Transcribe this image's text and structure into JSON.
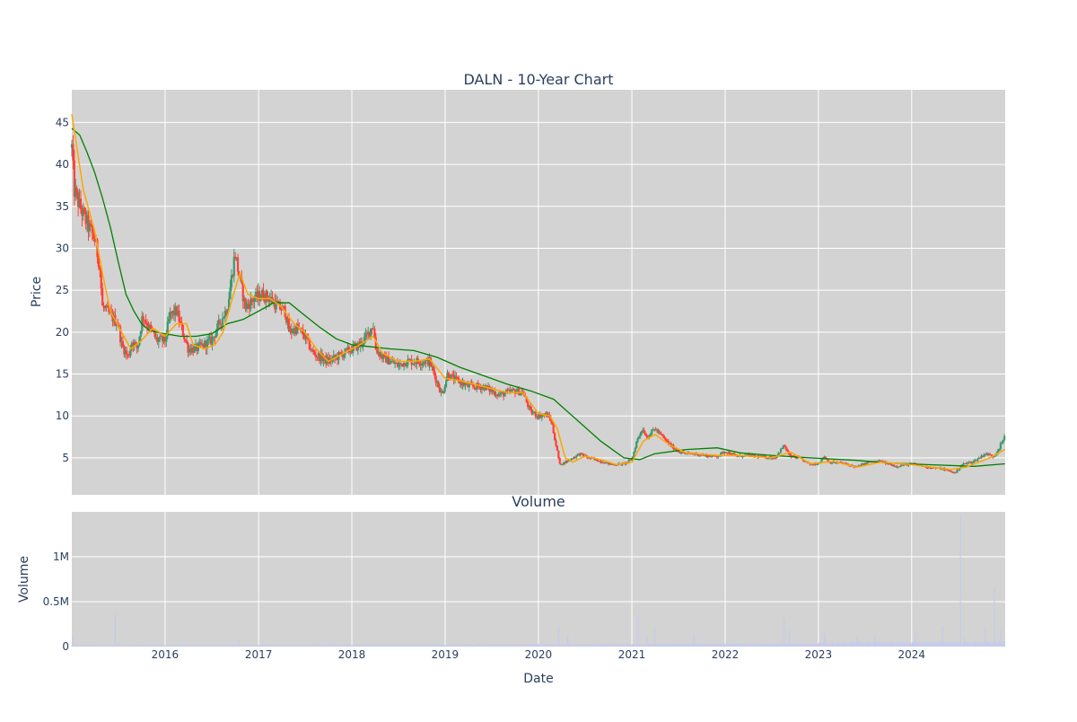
{
  "chart_data": [
    {
      "type": "candlestick",
      "title": "DALN - 10-Year Chart",
      "ylabel": "Price",
      "xlabel": "",
      "xlim": [
        "2015-01-01",
        "2025-01-01"
      ],
      "ylim": [
        0.6,
        48.9
      ],
      "y_ticks": [
        5,
        10,
        15,
        20,
        25,
        30,
        35,
        40,
        45
      ],
      "x_ticks": [
        "2016",
        "2017",
        "2018",
        "2019",
        "2020",
        "2021",
        "2022",
        "2023",
        "2024"
      ],
      "grid": true,
      "colors": {
        "increasing": "#3d9970",
        "decreasing": "#ff4136",
        "short_ma": "#ffa500",
        "long_ma": "#008000",
        "plot_bg": "#d3d3d3"
      },
      "price_path": [
        [
          "2015-01-01",
          42
        ],
        [
          "2015-01-10",
          37
        ],
        [
          "2015-02-01",
          35
        ],
        [
          "2015-03-01",
          33
        ],
        [
          "2015-04-01",
          31
        ],
        [
          "2015-04-20",
          28
        ],
        [
          "2015-05-01",
          23
        ],
        [
          "2015-06-01",
          22
        ],
        [
          "2015-07-01",
          21
        ],
        [
          "2015-07-15",
          18.5
        ],
        [
          "2015-08-10",
          17
        ],
        [
          "2015-08-25",
          19
        ],
        [
          "2015-09-15",
          18
        ],
        [
          "2015-10-05",
          22
        ],
        [
          "2015-11-01",
          20.5
        ],
        [
          "2015-12-01",
          19
        ],
        [
          "2016-01-01",
          19
        ],
        [
          "2016-01-20",
          22
        ],
        [
          "2016-02-15",
          22.5
        ],
        [
          "2016-03-10",
          20
        ],
        [
          "2016-04-01",
          18
        ],
        [
          "2016-05-01",
          18
        ],
        [
          "2016-06-01",
          18.5
        ],
        [
          "2016-07-01",
          19
        ],
        [
          "2016-08-01",
          21
        ],
        [
          "2016-09-01",
          23
        ],
        [
          "2016-09-15",
          26
        ],
        [
          "2016-10-01",
          29.5
        ],
        [
          "2016-10-15",
          27
        ],
        [
          "2016-11-10",
          23
        ],
        [
          "2016-12-15",
          24
        ],
        [
          "2017-01-15",
          24.5
        ],
        [
          "2017-02-15",
          24
        ],
        [
          "2017-03-20",
          23
        ],
        [
          "2017-04-15",
          22.5
        ],
        [
          "2017-05-01",
          20
        ],
        [
          "2017-06-01",
          20.5
        ],
        [
          "2017-07-01",
          19.5
        ],
        [
          "2017-08-01",
          17.5
        ],
        [
          "2017-09-01",
          17
        ],
        [
          "2017-10-01",
          16.5
        ],
        [
          "2017-11-01",
          17
        ],
        [
          "2017-12-01",
          17.5
        ],
        [
          "2018-01-01",
          18
        ],
        [
          "2018-02-01",
          18.5
        ],
        [
          "2018-03-01",
          19.5
        ],
        [
          "2018-03-25",
          21
        ],
        [
          "2018-04-05",
          18
        ],
        [
          "2018-05-01",
          17
        ],
        [
          "2018-06-01",
          16.5
        ],
        [
          "2018-07-01",
          16
        ],
        [
          "2018-08-01",
          16.5
        ],
        [
          "2018-09-01",
          16.5
        ],
        [
          "2018-10-01",
          16.5
        ],
        [
          "2018-11-01",
          16.5
        ],
        [
          "2018-12-01",
          14
        ],
        [
          "2018-12-20",
          12.5
        ],
        [
          "2019-01-10",
          15
        ],
        [
          "2019-02-01",
          14.5
        ],
        [
          "2019-04-01",
          13.5
        ],
        [
          "2019-06-01",
          13.5
        ],
        [
          "2019-08-01",
          12.5
        ],
        [
          "2019-10-01",
          13
        ],
        [
          "2019-11-01",
          12.8
        ],
        [
          "2019-12-01",
          10.5
        ],
        [
          "2020-01-01",
          10
        ],
        [
          "2020-02-01",
          10.2
        ],
        [
          "2020-02-20",
          9.5
        ],
        [
          "2020-03-10",
          6.5
        ],
        [
          "2020-03-25",
          4.2
        ],
        [
          "2020-04-15",
          4.5
        ],
        [
          "2020-05-15",
          5
        ],
        [
          "2020-06-10",
          5.5
        ],
        [
          "2020-07-15",
          5
        ],
        [
          "2020-09-01",
          4.6
        ],
        [
          "2020-10-15",
          4.2
        ],
        [
          "2020-12-01",
          4.3
        ],
        [
          "2021-01-01",
          4.8
        ],
        [
          "2021-01-20",
          7
        ],
        [
          "2021-02-10",
          8.5
        ],
        [
          "2021-03-01",
          7.5
        ],
        [
          "2021-04-01",
          8.5
        ],
        [
          "2021-05-01",
          7.5
        ],
        [
          "2021-06-01",
          6.5
        ],
        [
          "2021-07-01",
          5.8
        ],
        [
          "2021-08-01",
          5.5
        ],
        [
          "2021-09-01",
          5.5
        ],
        [
          "2021-11-01",
          5.2
        ],
        [
          "2021-12-01",
          5.2
        ],
        [
          "2022-01-01",
          5.8
        ],
        [
          "2022-02-15",
          5.2
        ],
        [
          "2022-04-01",
          5.3
        ],
        [
          "2022-06-01",
          5.1
        ],
        [
          "2022-07-15",
          5
        ],
        [
          "2022-08-20",
          6.5
        ],
        [
          "2022-09-10",
          5.2
        ],
        [
          "2022-10-15",
          5
        ],
        [
          "2022-12-01",
          4.2
        ],
        [
          "2023-01-01",
          4.4
        ],
        [
          "2023-01-25",
          5.2
        ],
        [
          "2023-02-10",
          4.5
        ],
        [
          "2023-04-01",
          4.4
        ],
        [
          "2023-06-01",
          3.9
        ],
        [
          "2023-07-15",
          4.5
        ],
        [
          "2023-09-01",
          4.6
        ],
        [
          "2023-11-01",
          4
        ],
        [
          "2024-01-01",
          4.3
        ],
        [
          "2024-03-01",
          3.9
        ],
        [
          "2024-05-01",
          3.7
        ],
        [
          "2024-06-20",
          3.2
        ],
        [
          "2024-07-15",
          4.2
        ],
        [
          "2024-09-01",
          4.6
        ],
        [
          "2024-10-15",
          5.5
        ],
        [
          "2024-11-15",
          5.2
        ],
        [
          "2024-12-01",
          5.8
        ],
        [
          "2024-12-31",
          7.5
        ]
      ],
      "series": [
        {
          "values": [
            [
              "2015-01-01",
              46
            ],
            [
              "2015-02-15",
              37
            ],
            [
              "2015-04-01",
              32
            ],
            [
              "2015-05-01",
              27
            ],
            [
              "2015-06-01",
              22.5
            ],
            [
              "2015-07-15",
              20
            ],
            [
              "2015-08-20",
              18
            ],
            [
              "2015-10-01",
              19
            ],
            [
              "2015-11-15",
              20.5
            ],
            [
              "2016-01-01",
              19.5
            ],
            [
              "2016-02-15",
              21
            ],
            [
              "2016-03-25",
              21
            ],
            [
              "2016-04-20",
              18.5
            ],
            [
              "2016-06-01",
              18
            ],
            [
              "2016-07-15",
              18.5
            ],
            [
              "2016-08-15",
              20
            ],
            [
              "2016-09-20",
              24
            ],
            [
              "2016-10-20",
              27
            ],
            [
              "2016-11-20",
              24.5
            ],
            [
              "2017-01-01",
              24
            ],
            [
              "2017-02-15",
              24
            ],
            [
              "2017-04-01",
              23
            ],
            [
              "2017-05-20",
              21
            ],
            [
              "2017-07-01",
              20
            ],
            [
              "2017-08-15",
              18
            ],
            [
              "2017-10-01",
              16.5
            ],
            [
              "2017-12-01",
              17.5
            ],
            [
              "2018-02-01",
              18.5
            ],
            [
              "2018-03-25",
              19.5
            ],
            [
              "2018-05-01",
              17.5
            ],
            [
              "2018-07-01",
              16.5
            ],
            [
              "2018-09-01",
              16.5
            ],
            [
              "2018-11-01",
              16.8
            ],
            [
              "2019-01-01",
              14.5
            ],
            [
              "2019-03-01",
              14.2
            ],
            [
              "2019-06-01",
              13.5
            ],
            [
              "2019-09-01",
              12.8
            ],
            [
              "2019-11-01",
              12.8
            ],
            [
              "2020-01-01",
              10.3
            ],
            [
              "2020-02-15",
              10
            ],
            [
              "2020-03-15",
              8.5
            ],
            [
              "2020-04-15",
              5
            ],
            [
              "2020-05-15",
              4.5
            ],
            [
              "2020-07-01",
              5.2
            ],
            [
              "2020-09-01",
              4.8
            ],
            [
              "2020-11-01",
              4.2
            ],
            [
              "2021-01-01",
              4.5
            ],
            [
              "2021-02-15",
              7
            ],
            [
              "2021-04-01",
              7.8
            ],
            [
              "2021-06-01",
              6.5
            ],
            [
              "2021-08-01",
              5.6
            ],
            [
              "2021-12-01",
              5.3
            ],
            [
              "2022-03-01",
              5.3
            ],
            [
              "2022-07-01",
              5
            ],
            [
              "2022-09-15",
              5.7
            ],
            [
              "2022-12-01",
              4.3
            ],
            [
              "2023-03-01",
              4.6
            ],
            [
              "2023-06-01",
              3.9
            ],
            [
              "2023-09-01",
              4.5
            ],
            [
              "2024-01-01",
              4.2
            ],
            [
              "2024-06-01",
              3.6
            ],
            [
              "2024-08-01",
              3.9
            ],
            [
              "2024-11-01",
              5
            ],
            [
              "2024-12-31",
              6
            ]
          ]
        },
        {
          "values": [
            [
              "2015-01-01",
              44.3
            ],
            [
              "2015-02-01",
              43.5
            ],
            [
              "2015-03-01",
              41.5
            ],
            [
              "2015-04-01",
              39
            ],
            [
              "2015-05-01",
              36
            ],
            [
              "2015-06-01",
              32.5
            ],
            [
              "2015-07-01",
              28.5
            ],
            [
              "2015-08-01",
              24.5
            ],
            [
              "2015-09-01",
              22.5
            ],
            [
              "2015-10-01",
              21
            ],
            [
              "2015-11-01",
              20.2
            ],
            [
              "2015-12-01",
              20
            ],
            [
              "2016-01-01",
              19.8
            ],
            [
              "2016-03-01",
              19.5
            ],
            [
              "2016-05-01",
              19.5
            ],
            [
              "2016-07-01",
              19.8
            ],
            [
              "2016-09-01",
              21
            ],
            [
              "2016-11-01",
              21.5
            ],
            [
              "2017-01-01",
              22.5
            ],
            [
              "2017-03-01",
              23.5
            ],
            [
              "2017-05-01",
              23.5
            ],
            [
              "2017-07-01",
              22
            ],
            [
              "2017-09-01",
              20.5
            ],
            [
              "2017-11-01",
              19.2
            ],
            [
              "2018-01-01",
              18.5
            ],
            [
              "2018-03-01",
              18.3
            ],
            [
              "2018-06-01",
              18
            ],
            [
              "2018-09-01",
              17.8
            ],
            [
              "2018-12-01",
              17
            ],
            [
              "2019-03-01",
              15.8
            ],
            [
              "2019-06-01",
              14.8
            ],
            [
              "2019-09-01",
              13.8
            ],
            [
              "2019-12-01",
              13
            ],
            [
              "2020-03-01",
              12
            ],
            [
              "2020-06-01",
              9.5
            ],
            [
              "2020-09-01",
              7
            ],
            [
              "2020-12-01",
              5
            ],
            [
              "2021-02-01",
              4.8
            ],
            [
              "2021-04-01",
              5.5
            ],
            [
              "2021-08-01",
              6
            ],
            [
              "2021-12-01",
              6.2
            ],
            [
              "2022-03-01",
              5.6
            ],
            [
              "2022-07-01",
              5.3
            ],
            [
              "2022-12-01",
              5
            ],
            [
              "2023-06-01",
              4.7
            ],
            [
              "2023-10-01",
              4.4
            ],
            [
              "2024-03-01",
              4.2
            ],
            [
              "2024-09-01",
              4
            ],
            [
              "2024-12-31",
              4.3
            ]
          ]
        }
      ]
    },
    {
      "type": "bar",
      "title": "Volume",
      "xlabel": "Date",
      "ylabel": "Volume",
      "ylim": [
        0,
        1500000
      ],
      "y_ticks": [
        0,
        500000,
        1000000
      ],
      "y_tick_labels": [
        "0",
        "0.5M",
        "1M"
      ],
      "x_ticks": [
        "2016",
        "2017",
        "2018",
        "2019",
        "2020",
        "2021",
        "2022",
        "2023",
        "2024"
      ],
      "grid": true,
      "bar_color": "#c5cbea",
      "spikes": [
        [
          "2015-01-05",
          120000
        ],
        [
          "2015-06-20",
          360000
        ],
        [
          "2015-07-01",
          45000
        ],
        [
          "2016-10-15",
          80000
        ],
        [
          "2020-03-20",
          230000
        ],
        [
          "2020-04-25",
          130000
        ],
        [
          "2021-01-25",
          340000
        ],
        [
          "2021-03-01",
          120000
        ],
        [
          "2021-04-01",
          200000
        ],
        [
          "2021-09-01",
          140000
        ],
        [
          "2022-08-20",
          320000
        ],
        [
          "2022-09-10",
          180000
        ],
        [
          "2023-01-25",
          150000
        ],
        [
          "2023-06-01",
          110000
        ],
        [
          "2023-08-10",
          130000
        ],
        [
          "2024-01-15",
          180000
        ],
        [
          "2024-05-01",
          230000
        ],
        [
          "2024-07-10",
          1450000
        ],
        [
          "2024-07-25",
          120000
        ],
        [
          "2024-10-15",
          200000
        ],
        [
          "2024-11-20",
          650000
        ],
        [
          "2024-12-15",
          180000
        ]
      ]
    }
  ]
}
